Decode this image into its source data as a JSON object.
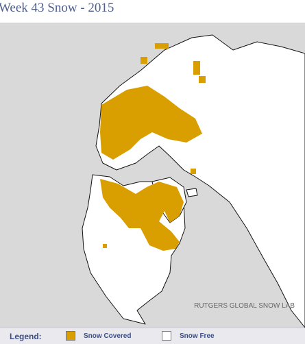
{
  "header": {
    "title": "Week 43 Snow - 2015"
  },
  "map": {
    "credit": "RUTGERS GLOBAL SNOW LAB"
  },
  "legend": {
    "title": "Legend:",
    "items": [
      {
        "label": "Snow Covered",
        "color": "#d99e00"
      },
      {
        "label": "Snow Free",
        "color": "#ffffff"
      }
    ]
  }
}
